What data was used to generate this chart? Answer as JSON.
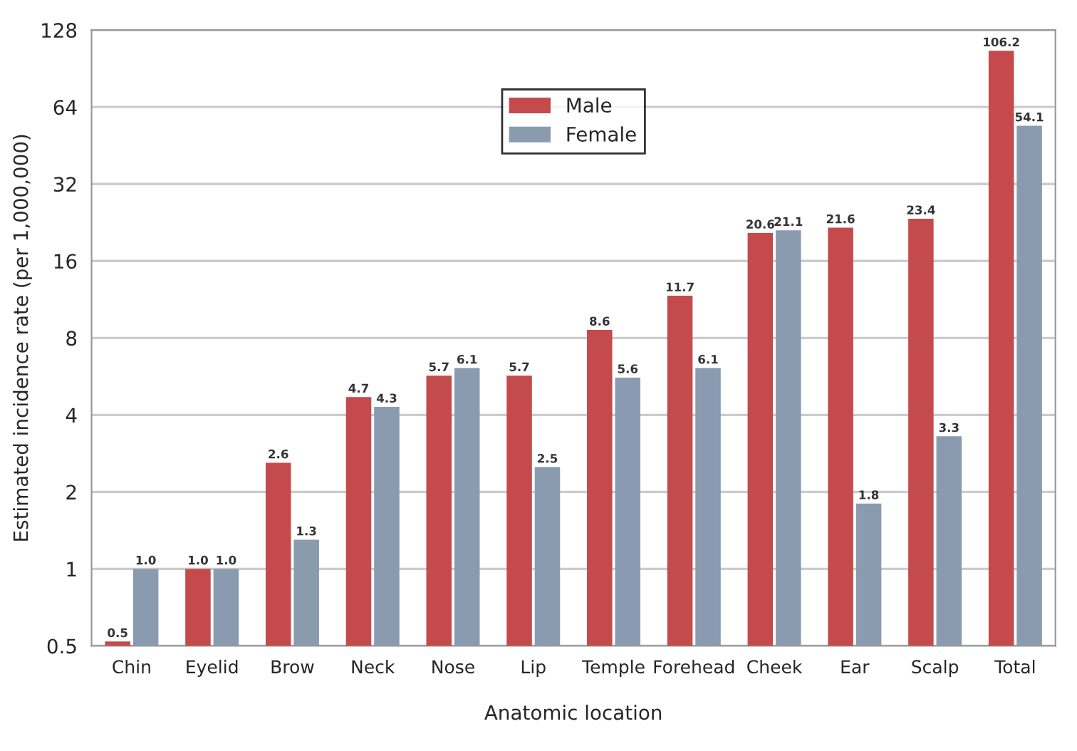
{
  "chart_data": {
    "type": "bar",
    "xlabel": "Anatomic location",
    "ylabel": "Estimated incidence rate (per 1,000,000)",
    "categories": [
      "Chin",
      "Eyelid",
      "Brow",
      "Neck",
      "Nose",
      "Lip",
      "Temple",
      "Forehead",
      "Cheek",
      "Ear",
      "Scalp",
      "Total"
    ],
    "series": [
      {
        "name": "Male",
        "color": "#c44a4c",
        "values": [
          0.52,
          1.0,
          2.6,
          4.7,
          5.7,
          5.7,
          8.6,
          11.7,
          20.6,
          21.6,
          23.4,
          106.2
        ],
        "value_labels": [
          "0.5",
          "1.0",
          "2.6",
          "4.7",
          "5.7",
          "5.7",
          "8.6",
          "11.7",
          "20.6",
          "21.6",
          "23.4",
          "106.2"
        ]
      },
      {
        "name": "Female",
        "color": "#8a9bb0",
        "values": [
          1.0,
          1.0,
          1.3,
          4.3,
          6.1,
          2.5,
          5.6,
          6.1,
          21.1,
          1.8,
          3.3,
          54.1
        ],
        "value_labels": [
          "1.0",
          "1.0",
          "1.3",
          "4.3",
          "6.1",
          "2.5",
          "5.6",
          "6.1",
          "21.1",
          "1.8",
          "3.3",
          "54.1"
        ]
      }
    ],
    "log": "y",
    "ylim": [
      0.5,
      128
    ],
    "yticks": [
      0.5,
      1,
      2,
      4,
      8,
      16,
      32,
      64,
      128
    ],
    "grid": "y",
    "legend": "top center"
  }
}
